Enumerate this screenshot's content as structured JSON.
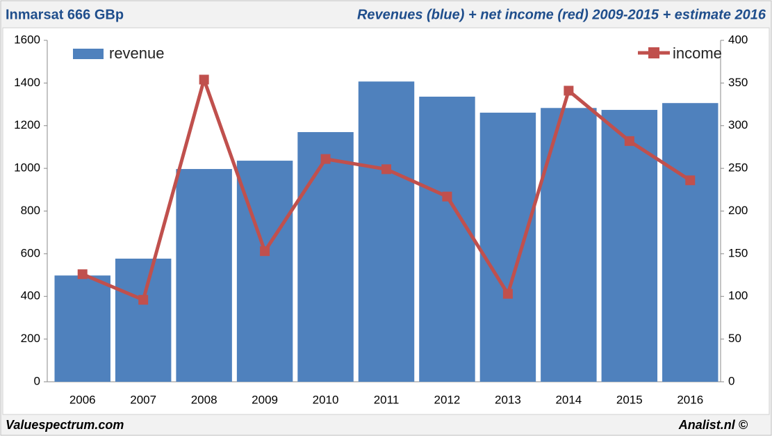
{
  "chart_data": {
    "type": "combo",
    "title": "Inmarsat 666 GBp",
    "subtitle": "Revenues (blue) + net income (red) 2009-2015 + estimate 2016",
    "source": "Valuespectrum.com",
    "credit": "Analist.nl ©",
    "categories": [
      "2006",
      "2007",
      "2008",
      "2009",
      "2010",
      "2011",
      "2012",
      "2013",
      "2014",
      "2015",
      "2016"
    ],
    "series": [
      {
        "name": "revenue",
        "type": "bar",
        "color": "#4f81bd",
        "values": [
          498,
          577,
          997,
          1036,
          1170,
          1407,
          1336,
          1261,
          1283,
          1274,
          1306
        ]
      },
      {
        "name": "income",
        "type": "line",
        "axis": "y2",
        "color": "#c0504d",
        "values": [
          126,
          96,
          354,
          153,
          261,
          249,
          217,
          103,
          341,
          282,
          236
        ]
      }
    ],
    "ylim": [
      0,
      1600
    ],
    "yticks": [
      0,
      200,
      400,
      600,
      800,
      1000,
      1200,
      1400,
      1600
    ],
    "y2lim": [
      0,
      400
    ],
    "y2ticks": [
      0,
      50,
      100,
      150,
      200,
      250,
      300,
      350,
      400
    ],
    "grid": false
  }
}
